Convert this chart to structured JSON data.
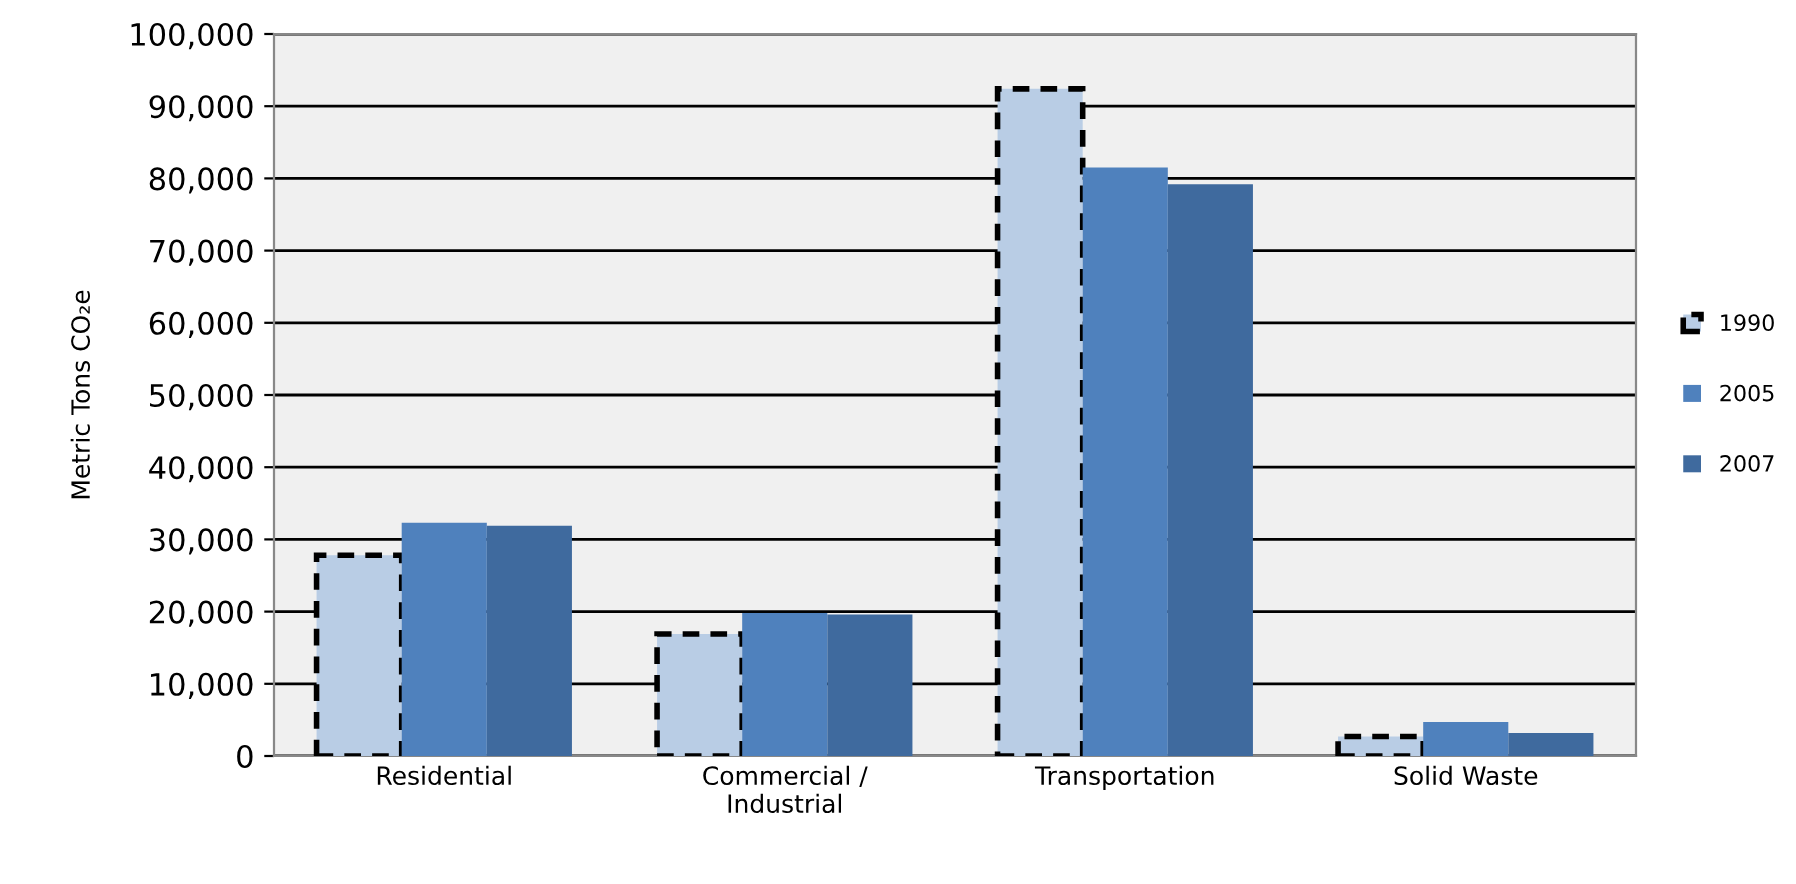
{
  "chart_data": {
    "type": "bar",
    "ylabel": "Metric Tons CO₂e",
    "categories": [
      "Residential",
      "Commercial /\nIndustrial",
      "Transportation",
      "Solid Waste"
    ],
    "series": [
      {
        "name": "1990",
        "color": "#b9cde5",
        "line_style": "dashed",
        "values": [
          27800,
          16900,
          92400,
          2700
        ]
      },
      {
        "name": "2005",
        "color": "#4f81bd",
        "values": [
          32300,
          19800,
          81500,
          4700
        ]
      },
      {
        "name": "2007",
        "color": "#3f6a9e",
        "values": [
          31900,
          19600,
          79200,
          3200
        ]
      }
    ],
    "ylim": [
      0,
      100000
    ],
    "yticks": [
      {
        "value": 0,
        "label": "0"
      },
      {
        "value": 10000,
        "label": "10,000"
      },
      {
        "value": 20000,
        "label": "20,000"
      },
      {
        "value": 30000,
        "label": "30,000"
      },
      {
        "value": 40000,
        "label": "40,000"
      },
      {
        "value": 50000,
        "label": "50,000"
      },
      {
        "value": 60000,
        "label": "60,000"
      },
      {
        "value": 70000,
        "label": "70,000"
      },
      {
        "value": 80000,
        "label": "80,000"
      },
      {
        "value": 90000,
        "label": "90,000"
      },
      {
        "value": 100000,
        "label": "100,000"
      }
    ],
    "grid": "y",
    "legend": "right"
  }
}
